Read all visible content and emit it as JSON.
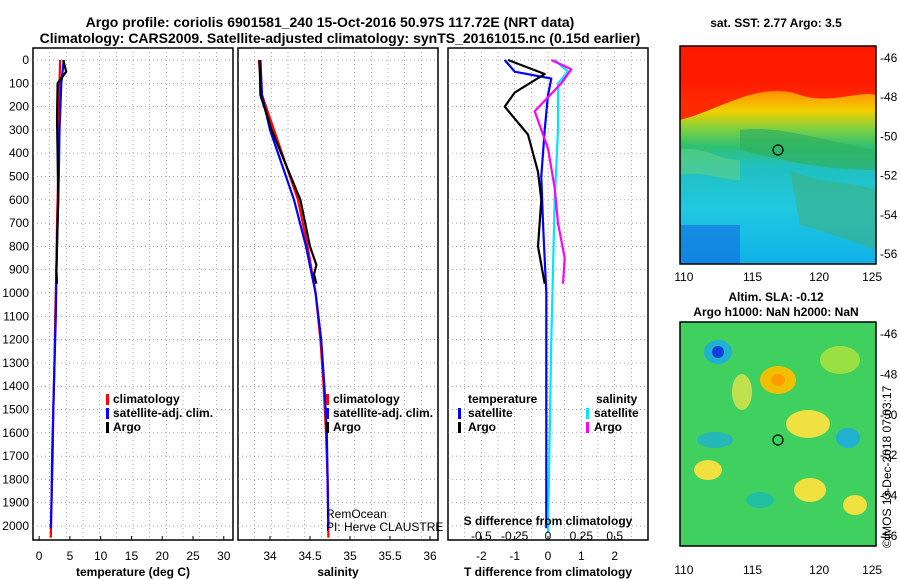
{
  "header": {
    "line1": "Argo profile: coriolis 6901581_240 15-Oct-2016 50.97S 117.72E (NRT data)",
    "line2": "Climatology: CARS2009. Satellite-adjusted climatology: synTS_20161015.nc (0.15d earlier)"
  },
  "colors": {
    "climatology": "#ff0000",
    "satellite": "#0000ff",
    "argo": "#000000",
    "sal_satellite": "#00e5ff",
    "sal_argo": "#ff00ff"
  },
  "chart_data": [
    {
      "type": "line",
      "id": "temperature",
      "xlabel": "temperature (deg C)",
      "ylabel": "",
      "xlim": [
        -1,
        31.5
      ],
      "ylim": [
        2060,
        0
      ],
      "xticks": [
        "0",
        "5",
        "10",
        "15",
        "20",
        "25",
        "30"
      ],
      "xtick_values": [
        0,
        5,
        10,
        15,
        20,
        25,
        30
      ],
      "yticks": [
        "0",
        "100",
        "200",
        "300",
        "400",
        "500",
        "600",
        "700",
        "800",
        "900",
        "1000",
        "1100",
        "1200",
        "1300",
        "1400",
        "1500",
        "1600",
        "1700",
        "1800",
        "1900",
        "2000"
      ],
      "ytick_values": [
        0,
        100,
        200,
        300,
        400,
        500,
        600,
        700,
        800,
        900,
        1000,
        1100,
        1200,
        1300,
        1400,
        1500,
        1600,
        1700,
        1800,
        1900,
        2000
      ],
      "legend": [
        "climatology",
        "satellite-adj. clim.",
        "Argo"
      ],
      "series": [
        {
          "name": "climatology",
          "color": "#ff0000",
          "x": [
            3.4,
            3.3,
            3.2,
            3.1,
            2.9,
            2.8,
            2.6,
            2.5,
            2.3,
            2.2,
            2.0,
            1.9
          ],
          "y": [
            0,
            100,
            300,
            500,
            700,
            900,
            1100,
            1300,
            1500,
            1700,
            1900,
            2050
          ]
        },
        {
          "name": "satellite-adj. clim.",
          "color": "#0000ff",
          "x": [
            4.0,
            3.6,
            3.3,
            3.2,
            3.0,
            2.8,
            2.7,
            2.5,
            2.3,
            2.1,
            2.0,
            1.9
          ],
          "y": [
            0,
            100,
            300,
            500,
            700,
            900,
            1100,
            1300,
            1500,
            1700,
            1900,
            2010
          ]
        },
        {
          "name": "Argo",
          "color": "#000000",
          "x": [
            3.9,
            4.4,
            3.0,
            2.9,
            3.0,
            3.1,
            2.9,
            2.8,
            2.9
          ],
          "y": [
            0,
            50,
            100,
            250,
            400,
            600,
            800,
            900,
            960
          ]
        }
      ]
    },
    {
      "type": "line",
      "id": "salinity",
      "xlabel": "salinity",
      "ylabel": "",
      "xlim": [
        33.6,
        36.1
      ],
      "ylim": [
        2060,
        0
      ],
      "xticks": [
        "34",
        "34.5",
        "35",
        "35.5",
        "36"
      ],
      "xtick_values": [
        34,
        34.5,
        35,
        35.5,
        36
      ],
      "yticks": [],
      "ytick_values": [],
      "legend": [
        "climatology",
        "satellite-adj. clim.",
        "Argo"
      ],
      "annotation": [
        "RemOcean",
        "PI: Herve CLAUSTRE"
      ],
      "series": [
        {
          "name": "climatology",
          "color": "#ff0000",
          "x": [
            33.86,
            33.9,
            34.05,
            34.2,
            34.35,
            34.47,
            34.57,
            34.63,
            34.67,
            34.7,
            34.72,
            34.73
          ],
          "y": [
            0,
            150,
            300,
            450,
            600,
            800,
            1000,
            1200,
            1400,
            1600,
            1800,
            2050
          ]
        },
        {
          "name": "satellite-adj. clim.",
          "color": "#0000ff",
          "x": [
            33.88,
            33.9,
            34.0,
            34.15,
            34.3,
            34.45,
            34.57,
            34.64,
            34.68,
            34.71,
            34.72,
            34.73
          ],
          "y": [
            0,
            150,
            300,
            450,
            600,
            800,
            1000,
            1200,
            1400,
            1600,
            1800,
            2010
          ]
        },
        {
          "name": "Argo",
          "color": "#000000",
          "x": [
            33.87,
            33.88,
            34.02,
            34.2,
            34.38,
            34.5,
            34.58,
            34.55,
            34.58
          ],
          "y": [
            0,
            150,
            300,
            450,
            600,
            800,
            880,
            920,
            960
          ]
        }
      ]
    },
    {
      "type": "line",
      "id": "difference",
      "xlabel": "T difference from climatology",
      "xlabel2": "S difference from climatology",
      "xlim": [
        -3,
        3
      ],
      "ylim": [
        2060,
        0
      ],
      "xticks": [
        "-2",
        "-1",
        "0",
        "1",
        "2"
      ],
      "xtick_values": [
        -2,
        -1,
        0,
        1,
        2
      ],
      "xticks_top": [
        "-0.5",
        "-0.25",
        "0",
        "0.25",
        "0.5"
      ],
      "xtick_top_positions": [
        -2.0,
        -1.0,
        0,
        1.0,
        2.0
      ],
      "legend_temperature": {
        "title": "temperature",
        "items": [
          "satellite",
          "Argo"
        ]
      },
      "legend_salinity": {
        "title": "salinity",
        "items": [
          "satellite",
          "Argo"
        ]
      },
      "series": [
        {
          "name": "T satellite",
          "color": "#0000ff",
          "x": [
            -1.3,
            -1.0,
            0.1,
            0.0,
            -0.1,
            -0.2,
            -0.15,
            -0.05,
            -0.05
          ],
          "y": [
            0,
            50,
            80,
            150,
            300,
            500,
            700,
            1000,
            2010
          ]
        },
        {
          "name": "T Argo",
          "color": "#000000",
          "x": [
            -1.2,
            -0.1,
            -1.0,
            -1.3,
            -0.6,
            -0.3,
            -0.2,
            -0.3,
            -0.1
          ],
          "y": [
            0,
            60,
            140,
            200,
            320,
            480,
            600,
            800,
            960
          ]
        },
        {
          "name": "S satellite",
          "color": "#00e5ff",
          "x": [
            0.2,
            0.6,
            0.3,
            0.3,
            0.2,
            0.15,
            0.1,
            0.05,
            0.0
          ],
          "y": [
            0,
            50,
            100,
            300,
            600,
            900,
            1200,
            1600,
            2030
          ]
        },
        {
          "name": "S Argo",
          "color": "#ff00ff",
          "x": [
            0.1,
            0.7,
            0.4,
            -0.4,
            0.0,
            0.2,
            0.3,
            0.5,
            0.45
          ],
          "y": [
            0,
            40,
            100,
            220,
            380,
            550,
            700,
            850,
            960
          ]
        }
      ]
    }
  ],
  "maps": {
    "sst": {
      "title": "sat. SST: 2.77 Argo: 3.5",
      "lon_ticks": [
        "110",
        "115",
        "120",
        "125"
      ],
      "lat_ticks": [
        "-46",
        "-48",
        "-50",
        "-52",
        "-54",
        "-56"
      ],
      "marker": {
        "lon": 117.72,
        "lat": -50.97
      }
    },
    "sla": {
      "title1": "Altim. SLA: -0.12",
      "title2": "Argo h1000: NaN h2000: NaN",
      "lon_ticks": [
        "110",
        "115",
        "120",
        "125"
      ],
      "lat_ticks": [
        "-46",
        "-48",
        "-50",
        "-52",
        "-54",
        "-56"
      ],
      "marker": {
        "lon": 117.72,
        "lat": -50.97
      }
    }
  },
  "credit": "©IMOS 13-Dec-2018 07:03:17"
}
